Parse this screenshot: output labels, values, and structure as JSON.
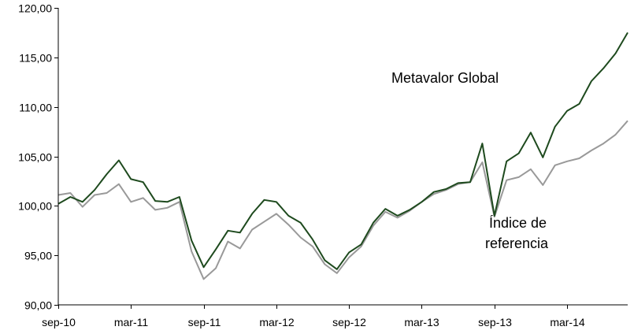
{
  "chart_data": {
    "type": "line",
    "title": "",
    "xlabel": "",
    "ylabel": "",
    "ylim": [
      90,
      120
    ],
    "yticks": [
      "90,00",
      "95,00",
      "100,00",
      "105,00",
      "110,00",
      "115,00",
      "120,00"
    ],
    "yticks_values": [
      90,
      95,
      100,
      105,
      110,
      115,
      120
    ],
    "x_tick_labels": [
      "sep-10",
      "mar-11",
      "sep-11",
      "mar-12",
      "sep-12",
      "mar-13",
      "sep-13",
      "mar-14"
    ],
    "x_range": [
      "sep-10",
      "sep-14"
    ],
    "grid": false,
    "legend": "none",
    "x": [
      "sep-10",
      "oct-10",
      "nov-10",
      "dic-10",
      "ene-11",
      "feb-11",
      "mar-11",
      "abr-11",
      "may-11",
      "jun-11",
      "jul-11",
      "ago-11",
      "sep-11",
      "oct-11",
      "nov-11",
      "dic-11",
      "ene-12",
      "feb-12",
      "mar-12",
      "abr-12",
      "may-12",
      "jun-12",
      "jul-12",
      "ago-12",
      "sep-12",
      "oct-12",
      "nov-12",
      "dic-12",
      "ene-13",
      "feb-13",
      "mar-13",
      "abr-13",
      "may-13",
      "jun-13",
      "jul-13",
      "ago-13",
      "sep-13",
      "oct-13",
      "nov-13",
      "dic-13",
      "ene-14",
      "feb-14",
      "mar-14",
      "abr-14",
      "may-14",
      "jun-14",
      "jul-14",
      "ago-14"
    ],
    "series": [
      {
        "name": "Metavalor Global",
        "color": "#1e4a1e",
        "values": [
          100.2,
          100.9,
          100.4,
          101.6,
          103.2,
          104.6,
          102.7,
          102.4,
          100.5,
          100.4,
          100.9,
          96.5,
          93.8,
          95.6,
          97.5,
          97.3,
          99.2,
          100.6,
          100.4,
          99.0,
          98.3,
          96.6,
          94.5,
          93.6,
          95.3,
          96.1,
          98.3,
          99.7,
          99.0,
          99.6,
          100.4,
          101.4,
          101.7,
          102.3,
          102.4,
          106.3,
          99.0,
          104.5,
          105.3,
          107.4,
          104.9,
          108.0,
          109.6,
          110.3,
          112.6,
          113.9,
          115.4,
          117.5
        ]
      },
      {
        "name": "Índice de referencia",
        "color": "#999999",
        "values": [
          101.1,
          101.3,
          99.9,
          101.1,
          101.3,
          102.2,
          100.4,
          100.8,
          99.6,
          99.8,
          100.4,
          95.4,
          92.6,
          93.7,
          96.4,
          95.7,
          97.6,
          98.4,
          99.2,
          98.1,
          96.8,
          95.9,
          94.1,
          93.2,
          94.8,
          95.9,
          98.0,
          99.4,
          98.8,
          99.5,
          100.4,
          101.2,
          101.6,
          102.2,
          102.4,
          104.4,
          98.9,
          102.6,
          102.9,
          103.7,
          102.1,
          104.1,
          104.5,
          104.8,
          105.6,
          106.3,
          107.2,
          108.6
        ]
      }
    ],
    "annotations": [
      {
        "text": "Metavalor Global",
        "series": 0
      },
      {
        "text": "Índice de",
        "series": 1
      },
      {
        "text": "referencia",
        "series": 1
      }
    ]
  }
}
